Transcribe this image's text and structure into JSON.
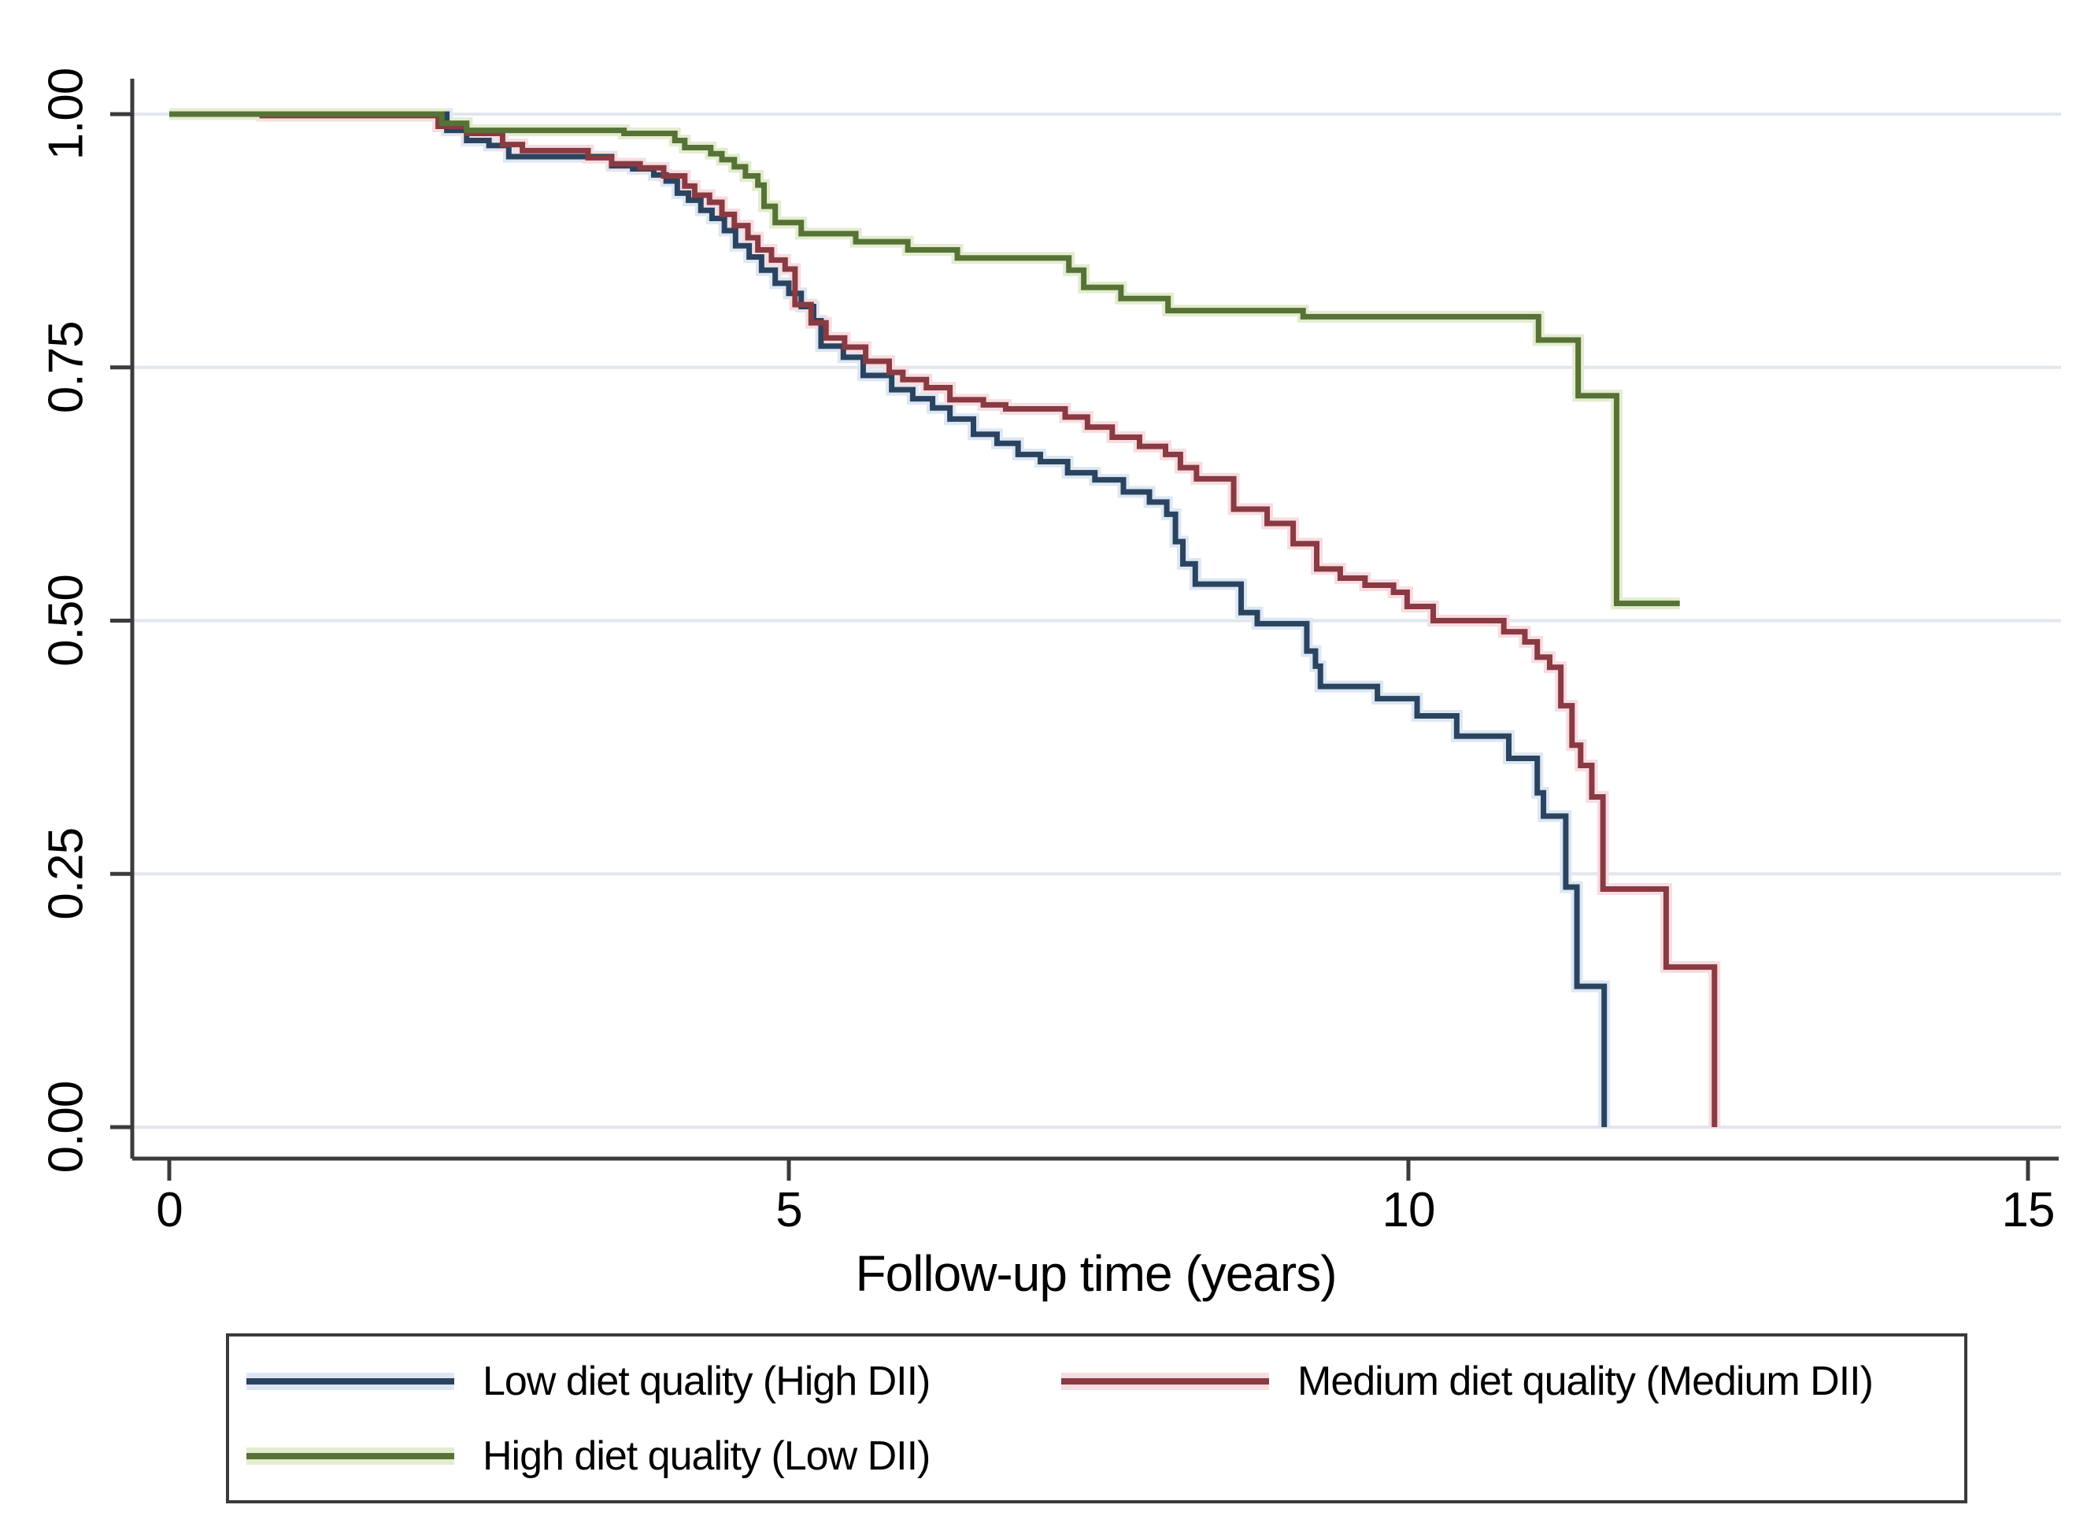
{
  "chart_data": {
    "type": "line",
    "subtype": "kaplan-meier-step-function",
    "title": "",
    "xlabel": "Follow-up time (years)",
    "ylabel": "",
    "xlim": [
      0,
      15
    ],
    "ylim": [
      0.0,
      1.0
    ],
    "xticks": [
      "0",
      "5",
      "10",
      "15"
    ],
    "xtick_values": [
      0,
      5,
      10,
      15
    ],
    "yticks": [
      "0.00",
      "0.25",
      "0.50",
      "0.75",
      "1.00"
    ],
    "ytick_values": [
      0.0,
      0.25,
      0.5,
      0.75,
      1.0
    ],
    "grid": "horizontal-only",
    "grid_color": "#e2e6ee",
    "axis_color": "#3b3b3b",
    "legend_position": "boxed-below-two-columns",
    "series": [
      {
        "name": "Low diet quality (High DII)",
        "color": "#2a4460",
        "halo": "#dde7f3",
        "points": [
          [
            0,
            1
          ],
          [
            2.24,
            0.984
          ],
          [
            2.4,
            0.974
          ],
          [
            2.58,
            0.969
          ],
          [
            2.74,
            0.958
          ],
          [
            3.57,
            0.949
          ],
          [
            3.74,
            0.946
          ],
          [
            3.91,
            0.94
          ],
          [
            4.01,
            0.934
          ],
          [
            4.1,
            0.922
          ],
          [
            4.19,
            0.915
          ],
          [
            4.29,
            0.905
          ],
          [
            4.38,
            0.897
          ],
          [
            4.48,
            0.885
          ],
          [
            4.57,
            0.87
          ],
          [
            4.68,
            0.859
          ],
          [
            4.78,
            0.846
          ],
          [
            4.89,
            0.833
          ],
          [
            5.0,
            0.823
          ],
          [
            5.1,
            0.81
          ],
          [
            5.2,
            0.796
          ],
          [
            5.26,
            0.771
          ],
          [
            5.44,
            0.76
          ],
          [
            5.6,
            0.742
          ],
          [
            5.83,
            0.728
          ],
          [
            6.0,
            0.719
          ],
          [
            6.16,
            0.71
          ],
          [
            6.3,
            0.699
          ],
          [
            6.49,
            0.684
          ],
          [
            6.68,
            0.675
          ],
          [
            6.85,
            0.664
          ],
          [
            7.03,
            0.657
          ],
          [
            7.25,
            0.646
          ],
          [
            7.47,
            0.639
          ],
          [
            7.7,
            0.627
          ],
          [
            7.91,
            0.617
          ],
          [
            8.05,
            0.605
          ],
          [
            8.12,
            0.578
          ],
          [
            8.18,
            0.556
          ],
          [
            8.28,
            0.536
          ],
          [
            8.65,
            0.508
          ],
          [
            8.78,
            0.497
          ],
          [
            9.18,
            0.47
          ],
          [
            9.25,
            0.455
          ],
          [
            9.29,
            0.435
          ],
          [
            9.75,
            0.423
          ],
          [
            10.07,
            0.406
          ],
          [
            10.39,
            0.386
          ],
          [
            10.81,
            0.364
          ],
          [
            11.04,
            0.33
          ],
          [
            11.09,
            0.307
          ],
          [
            11.27,
            0.237
          ],
          [
            11.36,
            0.139
          ],
          [
            11.58,
            0.0
          ]
        ]
      },
      {
        "name": "Medium diet quality (Medium DII)",
        "color": "#8a3a42",
        "halo": "#f6dde1",
        "points": [
          [
            0,
            1
          ],
          [
            0.75,
            0.9985
          ],
          [
            2.17,
            0.988
          ],
          [
            2.4,
            0.981
          ],
          [
            2.69,
            0.97
          ],
          [
            2.85,
            0.964
          ],
          [
            3.38,
            0.957
          ],
          [
            3.57,
            0.951
          ],
          [
            3.8,
            0.947
          ],
          [
            3.99,
            0.939
          ],
          [
            4.16,
            0.929
          ],
          [
            4.24,
            0.92
          ],
          [
            4.36,
            0.913
          ],
          [
            4.46,
            0.901
          ],
          [
            4.56,
            0.89
          ],
          [
            4.67,
            0.878
          ],
          [
            4.75,
            0.866
          ],
          [
            4.86,
            0.856
          ],
          [
            4.97,
            0.847
          ],
          [
            5.05,
            0.812
          ],
          [
            5.18,
            0.794
          ],
          [
            5.3,
            0.779
          ],
          [
            5.45,
            0.77
          ],
          [
            5.62,
            0.756
          ],
          [
            5.81,
            0.745
          ],
          [
            5.92,
            0.738
          ],
          [
            6.11,
            0.73
          ],
          [
            6.3,
            0.718
          ],
          [
            6.57,
            0.713
          ],
          [
            6.75,
            0.709
          ],
          [
            7.23,
            0.701
          ],
          [
            7.41,
            0.691
          ],
          [
            7.61,
            0.681
          ],
          [
            7.83,
            0.672
          ],
          [
            8.04,
            0.664
          ],
          [
            8.16,
            0.651
          ],
          [
            8.29,
            0.64
          ],
          [
            8.59,
            0.61
          ],
          [
            8.86,
            0.596
          ],
          [
            9.07,
            0.576
          ],
          [
            9.26,
            0.551
          ],
          [
            9.45,
            0.542
          ],
          [
            9.65,
            0.535
          ],
          [
            9.88,
            0.528
          ],
          [
            9.99,
            0.514
          ],
          [
            10.2,
            0.5
          ],
          [
            10.77,
            0.489
          ],
          [
            10.94,
            0.479
          ],
          [
            11.04,
            0.464
          ],
          [
            11.14,
            0.454
          ],
          [
            11.23,
            0.416
          ],
          [
            11.32,
            0.377
          ],
          [
            11.39,
            0.357
          ],
          [
            11.48,
            0.326
          ],
          [
            11.57,
            0.235
          ],
          [
            12.08,
            0.158
          ],
          [
            12.47,
            0.0
          ]
        ]
      },
      {
        "name": "High diet quality (Low DII)",
        "color": "#567236",
        "halo": "#e3eccf",
        "points": [
          [
            0,
            1
          ],
          [
            2.2,
            0.991
          ],
          [
            2.4,
            0.984
          ],
          [
            3.67,
            0.981
          ],
          [
            4.08,
            0.974
          ],
          [
            4.16,
            0.967
          ],
          [
            4.37,
            0.961
          ],
          [
            4.46,
            0.955
          ],
          [
            4.56,
            0.948
          ],
          [
            4.65,
            0.939
          ],
          [
            4.75,
            0.93
          ],
          [
            4.8,
            0.909
          ],
          [
            4.89,
            0.893
          ],
          [
            5.1,
            0.882
          ],
          [
            5.54,
            0.874
          ],
          [
            5.96,
            0.866
          ],
          [
            6.36,
            0.858
          ],
          [
            7.26,
            0.846
          ],
          [
            7.38,
            0.829
          ],
          [
            7.68,
            0.818
          ],
          [
            8.06,
            0.806
          ],
          [
            9.15,
            0.8
          ],
          [
            11.05,
            0.777
          ],
          [
            11.37,
            0.722
          ],
          [
            11.68,
            0.517
          ],
          [
            12.19,
            0.517
          ]
        ]
      }
    ]
  }
}
